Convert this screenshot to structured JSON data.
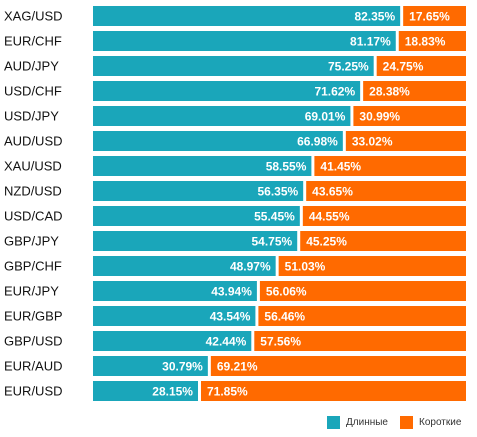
{
  "chart_data": {
    "type": "bar",
    "stacked": true,
    "orientation": "horizontal",
    "categories": [
      "XAG/USD",
      "EUR/CHF",
      "AUD/JPY",
      "USD/CHF",
      "USD/JPY",
      "AUD/USD",
      "XAU/USD",
      "NZD/USD",
      "USD/CAD",
      "GBP/JPY",
      "GBP/CHF",
      "EUR/JPY",
      "EUR/GBP",
      "GBP/USD",
      "EUR/AUD",
      "EUR/USD"
    ],
    "series": [
      {
        "name": "Длинные",
        "color": "#1aa6ba",
        "values": [
          82.35,
          81.17,
          75.25,
          71.62,
          69.01,
          66.98,
          58.55,
          56.35,
          55.45,
          54.75,
          48.97,
          43.94,
          43.54,
          42.44,
          30.79,
          28.15
        ],
        "labels": [
          "82.35%",
          "81.17%",
          "75.25%",
          "71.62%",
          "69.01%",
          "66.98%",
          "58.55%",
          "56.35%",
          "55.45%",
          "54.75%",
          "48.97%",
          "43.94%",
          "43.54%",
          "42.44%",
          "30.79%",
          "28.15%"
        ]
      },
      {
        "name": "Короткие",
        "color": "#ff6a00",
        "values": [
          17.65,
          18.83,
          24.75,
          28.38,
          30.99,
          33.02,
          41.45,
          43.65,
          44.55,
          45.25,
          51.03,
          56.06,
          56.46,
          57.56,
          69.21,
          71.85
        ],
        "labels": [
          "17.65%",
          "18.83%",
          "24.75%",
          "28.38%",
          "30.99%",
          "33.02%",
          "41.45%",
          "43.65%",
          "44.55%",
          "45.25%",
          "51.03%",
          "56.06%",
          "56.46%",
          "57.56%",
          "69.21%",
          "71.85%"
        ]
      }
    ],
    "xlim": [
      0,
      100
    ],
    "legend_position": "bottom-right"
  }
}
